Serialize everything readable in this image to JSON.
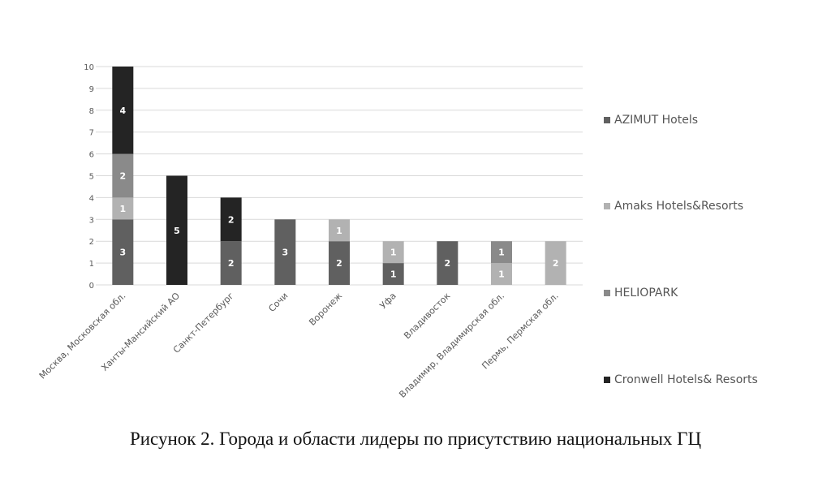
{
  "chart_data": {
    "type": "bar",
    "stacked": true,
    "title": "",
    "xlabel": "",
    "ylabel": "",
    "ylim": [
      0,
      10
    ],
    "yticks": [
      0,
      1,
      2,
      3,
      4,
      5,
      6,
      7,
      8,
      9,
      10
    ],
    "grid": true,
    "legend_position": "right",
    "categories": [
      "Москва, Московская обл.",
      "Ханты-Мансийский АО",
      "Санкт-Петербург",
      "Сочи",
      "Воронеж",
      "Уфа",
      "Владивосток",
      "Владимир, Владимирская обл.",
      "Пермь, Пермская обл."
    ],
    "series": [
      {
        "name": "AZIMUT Hotels",
        "color": "#606060",
        "values": [
          3,
          0,
          2,
          3,
          2,
          1,
          2,
          0,
          0
        ]
      },
      {
        "name": "Amaks Hotels&Resorts",
        "color": "#b2b2b2",
        "values": [
          1,
          0,
          0,
          0,
          1,
          1,
          0,
          1,
          2
        ]
      },
      {
        "name": "HELIOPARK",
        "color": "#8a8a8a",
        "values": [
          2,
          0,
          0,
          0,
          0,
          0,
          0,
          1,
          0
        ]
      },
      {
        "name": "Cronwell Hotels& Resorts",
        "color": "#242424",
        "values": [
          4,
          5,
          2,
          0,
          0,
          0,
          0,
          0,
          0
        ]
      }
    ]
  },
  "caption": "Рисунок 2. Города и области лидеры по присутствию национальных ГЦ"
}
